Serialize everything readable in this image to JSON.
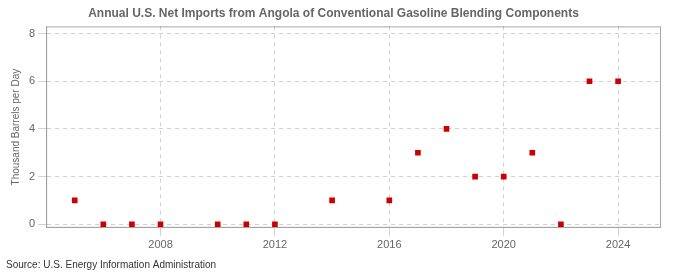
{
  "chart_data": {
    "type": "scatter",
    "title": "Annual U.S. Net Imports from Angola of Conventional Gasoline Blending Components",
    "ylabel": "Thousand Barrels per Day",
    "annotations": [
      "Source: U.S. Energy Information Administration"
    ],
    "x": [
      2005,
      2006,
      2007,
      2008,
      2010,
      2011,
      2012,
      2014,
      2016,
      2017,
      2018,
      2019,
      2020,
      2021,
      2022,
      2023,
      2024
    ],
    "values": [
      1,
      0,
      0,
      0,
      0,
      0,
      0,
      1,
      1,
      3,
      4,
      2,
      2,
      3,
      0,
      6,
      6
    ],
    "color": "#cc0000",
    "marker": "square",
    "xlim": [
      2004.0,
      2025.5
    ],
    "ylim": [
      -0.15,
      8.3
    ],
    "xticks": [
      2008,
      2012,
      2016,
      2020,
      2024
    ],
    "yticks": [
      0,
      2,
      4,
      6,
      8
    ],
    "grid": true
  }
}
